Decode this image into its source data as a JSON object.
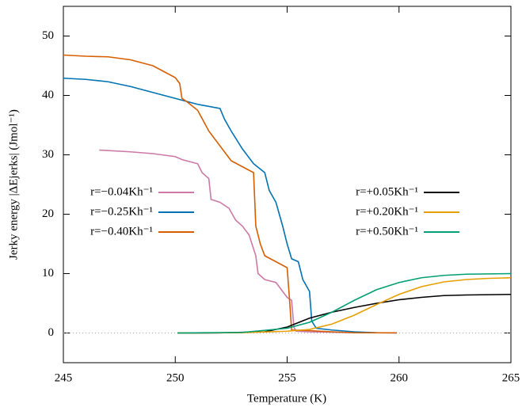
{
  "chart_data": {
    "type": "line",
    "xlabel": "Temperature (K)",
    "ylabel": "Jerky energy |ΔEjerks| (Jmol⁻¹)",
    "xlim": [
      245,
      265
    ],
    "xticks": [
      245,
      250,
      255,
      260,
      265
    ],
    "ylim": [
      -5,
      55
    ],
    "yticks": [
      0,
      10,
      20,
      30,
      40,
      50
    ],
    "zero_line": true,
    "series": [
      {
        "name": "r=−0.04Kh⁻¹",
        "color": "#cc79a7",
        "x": [
          246.6,
          248,
          249,
          250,
          250.3,
          251,
          251.2,
          251.5,
          251.6,
          252,
          252.4,
          252.7,
          253,
          253.3,
          253.6,
          253.7,
          254,
          254.5,
          255,
          255.2,
          255.3,
          255.4,
          256,
          258,
          259.9
        ],
        "values": [
          30.8,
          30.5,
          30.2,
          29.7,
          29.2,
          28.5,
          27,
          26,
          22.5,
          22,
          21,
          19,
          18,
          16.5,
          13,
          10,
          9,
          8.5,
          6,
          5.5,
          1,
          0.3,
          0.2,
          0.05,
          0.02
        ]
      },
      {
        "name": "r=−0.25Kh⁻¹",
        "color": "#0072b2",
        "x": [
          245,
          246,
          247,
          248,
          249,
          250,
          251,
          252,
          252.2,
          252.5,
          253,
          253.5,
          254,
          254.2,
          254.5,
          254.8,
          255,
          255.2,
          255.5,
          255.7,
          256,
          256.1,
          256.3,
          257,
          258,
          259,
          259.9
        ],
        "values": [
          42.9,
          42.7,
          42.3,
          41.5,
          40.5,
          39.5,
          38.5,
          37.8,
          36,
          34,
          31,
          28.5,
          27,
          24,
          22,
          18,
          15,
          12.5,
          12,
          9,
          7,
          2,
          0.8,
          0.5,
          0.2,
          0.05,
          0.02
        ]
      },
      {
        "name": "r=−0.40Kh⁻¹",
        "color": "#d55e00",
        "x": [
          245,
          246,
          247,
          248,
          249,
          249.5,
          250,
          250.2,
          250.3,
          250.5,
          251,
          251.5,
          252,
          252.5,
          253,
          253.5,
          253.6,
          253.8,
          254,
          254.5,
          255,
          255.1,
          255.2,
          256,
          257,
          258,
          259.9
        ],
        "values": [
          46.8,
          46.6,
          46.5,
          46,
          45,
          44,
          43,
          42,
          39.5,
          39,
          37.5,
          34,
          31.5,
          29,
          28,
          27,
          18,
          15,
          13,
          12,
          11,
          6,
          0.5,
          0.4,
          0.2,
          0.05,
          0.02
        ]
      },
      {
        "name": "r=+0.05Kh⁻¹",
        "color": "#000000",
        "x": [
          250.1,
          252,
          254,
          255,
          256,
          257,
          258,
          259,
          260,
          261,
          262,
          263,
          265
        ],
        "values": [
          0,
          0.02,
          0.2,
          1,
          2.5,
          3.5,
          4.3,
          5,
          5.6,
          6,
          6.3,
          6.4,
          6.5
        ]
      },
      {
        "name": "r=+0.20Kh⁻¹",
        "color": "#e69f00",
        "x": [
          250.1,
          253,
          255,
          256,
          257,
          258,
          259,
          260,
          261,
          262,
          263,
          264,
          265
        ],
        "values": [
          0,
          0.05,
          0.3,
          0.6,
          1.5,
          3,
          4.8,
          6.5,
          7.8,
          8.6,
          9,
          9.2,
          9.3
        ]
      },
      {
        "name": "r=+0.50Kh⁻¹",
        "color": "#009e73",
        "x": [
          250.1,
          253,
          255,
          256,
          257,
          258,
          259,
          260,
          261,
          262,
          263,
          265
        ],
        "values": [
          0,
          0.1,
          0.8,
          1.8,
          3.5,
          5.5,
          7.3,
          8.5,
          9.3,
          9.7,
          9.9,
          10
        ]
      }
    ]
  }
}
